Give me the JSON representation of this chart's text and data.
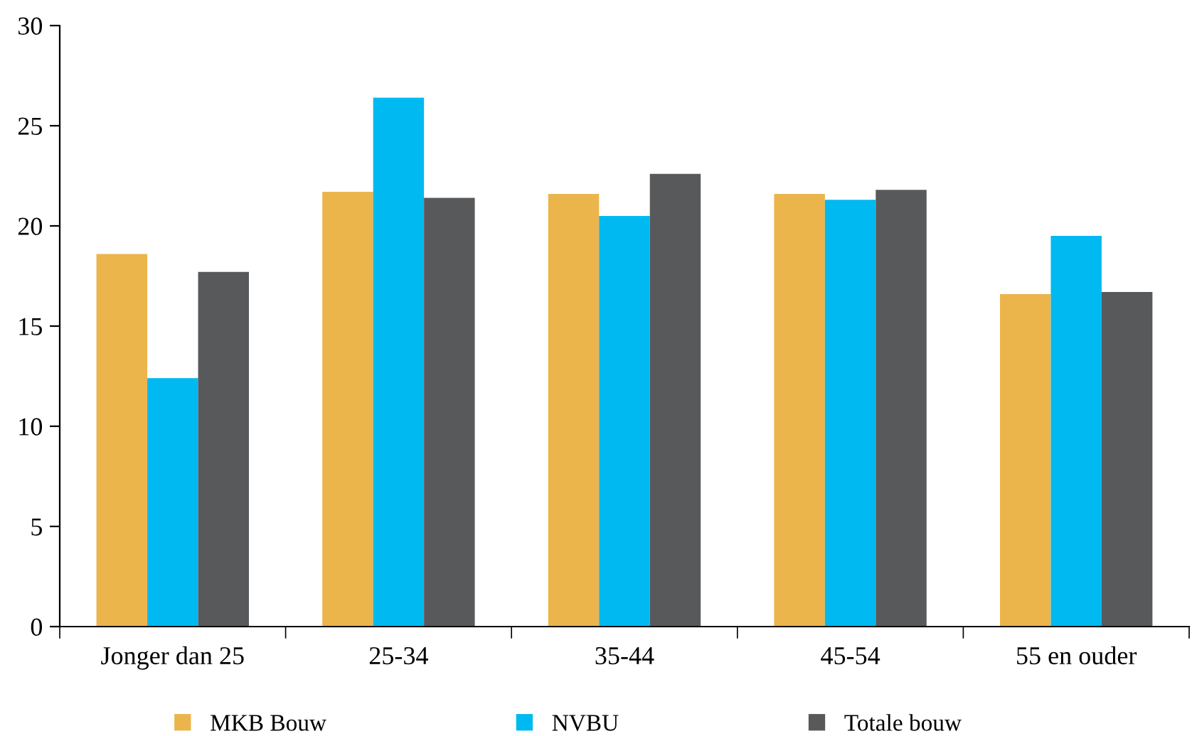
{
  "chart_data": {
    "type": "bar",
    "categories": [
      "Jonger dan 25",
      "25-34",
      "35-44",
      "45-54",
      "55 en ouder"
    ],
    "series": [
      {
        "name": "MKB Bouw",
        "color": "#ebb54b",
        "values": [
          18.6,
          21.7,
          21.6,
          21.6,
          16.6
        ]
      },
      {
        "name": "NVBU",
        "color": "#00b9f1",
        "values": [
          12.4,
          26.4,
          20.5,
          21.3,
          19.5
        ]
      },
      {
        "name": "Totale bouw",
        "color": "#58595b",
        "values": [
          17.7,
          21.4,
          22.6,
          21.8,
          16.7
        ]
      }
    ],
    "ylim": [
      0,
      30
    ],
    "yticks": [
      0,
      5,
      10,
      15,
      20,
      25,
      30
    ],
    "grid": false,
    "legend": "bottom"
  }
}
